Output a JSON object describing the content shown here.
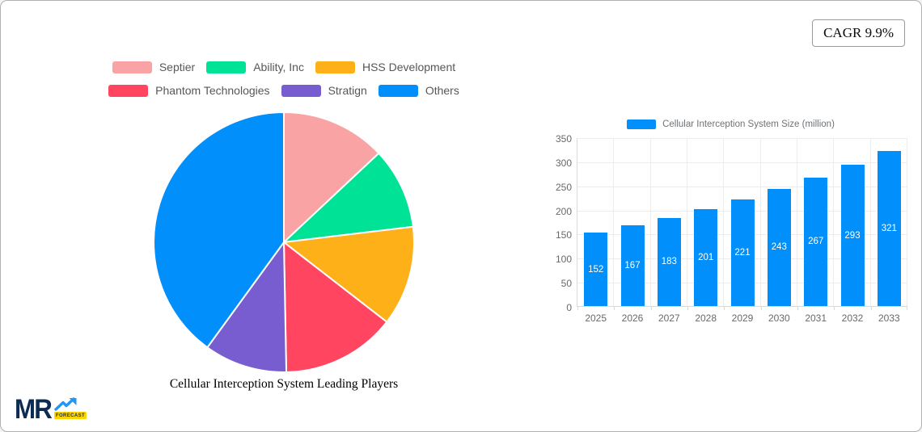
{
  "badge": {
    "label": "CAGR 9.9%"
  },
  "logo": {
    "text": "MR",
    "sub_text": "FORECAST",
    "text_color": "#0d2b52",
    "arrow_color": "#2196f3",
    "sub_bg_color": "#ffd500"
  },
  "chart_data": [
    {
      "type": "pie",
      "title": "Cellular Interception System Leading Players",
      "legend_position": "top",
      "start_angle_deg": 0,
      "direction": "clockwise",
      "slices": [
        {
          "label": "Septier",
          "value": 13.0,
          "color": "#F9A3A4"
        },
        {
          "label": "Ability, Inc",
          "value": 10.1,
          "color": "#00E396"
        },
        {
          "label": "HSS Development",
          "value": 12.4,
          "color": "#FEB019"
        },
        {
          "label": "Phantom Technologies",
          "value": 14.2,
          "color": "#FF4560"
        },
        {
          "label": "Stratign",
          "value": 10.3,
          "color": "#775DD0"
        },
        {
          "label": "Others",
          "value": 40.0,
          "color": "#008FFB"
        }
      ]
    },
    {
      "type": "bar",
      "legend": "Cellular Interception System Size (million)",
      "categories": [
        "2025",
        "2026",
        "2027",
        "2028",
        "2029",
        "2030",
        "2031",
        "2032",
        "2033"
      ],
      "values": [
        152,
        167,
        183,
        201,
        221,
        243,
        267,
        293,
        321
      ],
      "bar_color": "#008FFB",
      "ylim": [
        0,
        350
      ],
      "ytick_step": 50,
      "grid": true,
      "value_labels": "inside-center-white",
      "legend_position": "top"
    }
  ]
}
